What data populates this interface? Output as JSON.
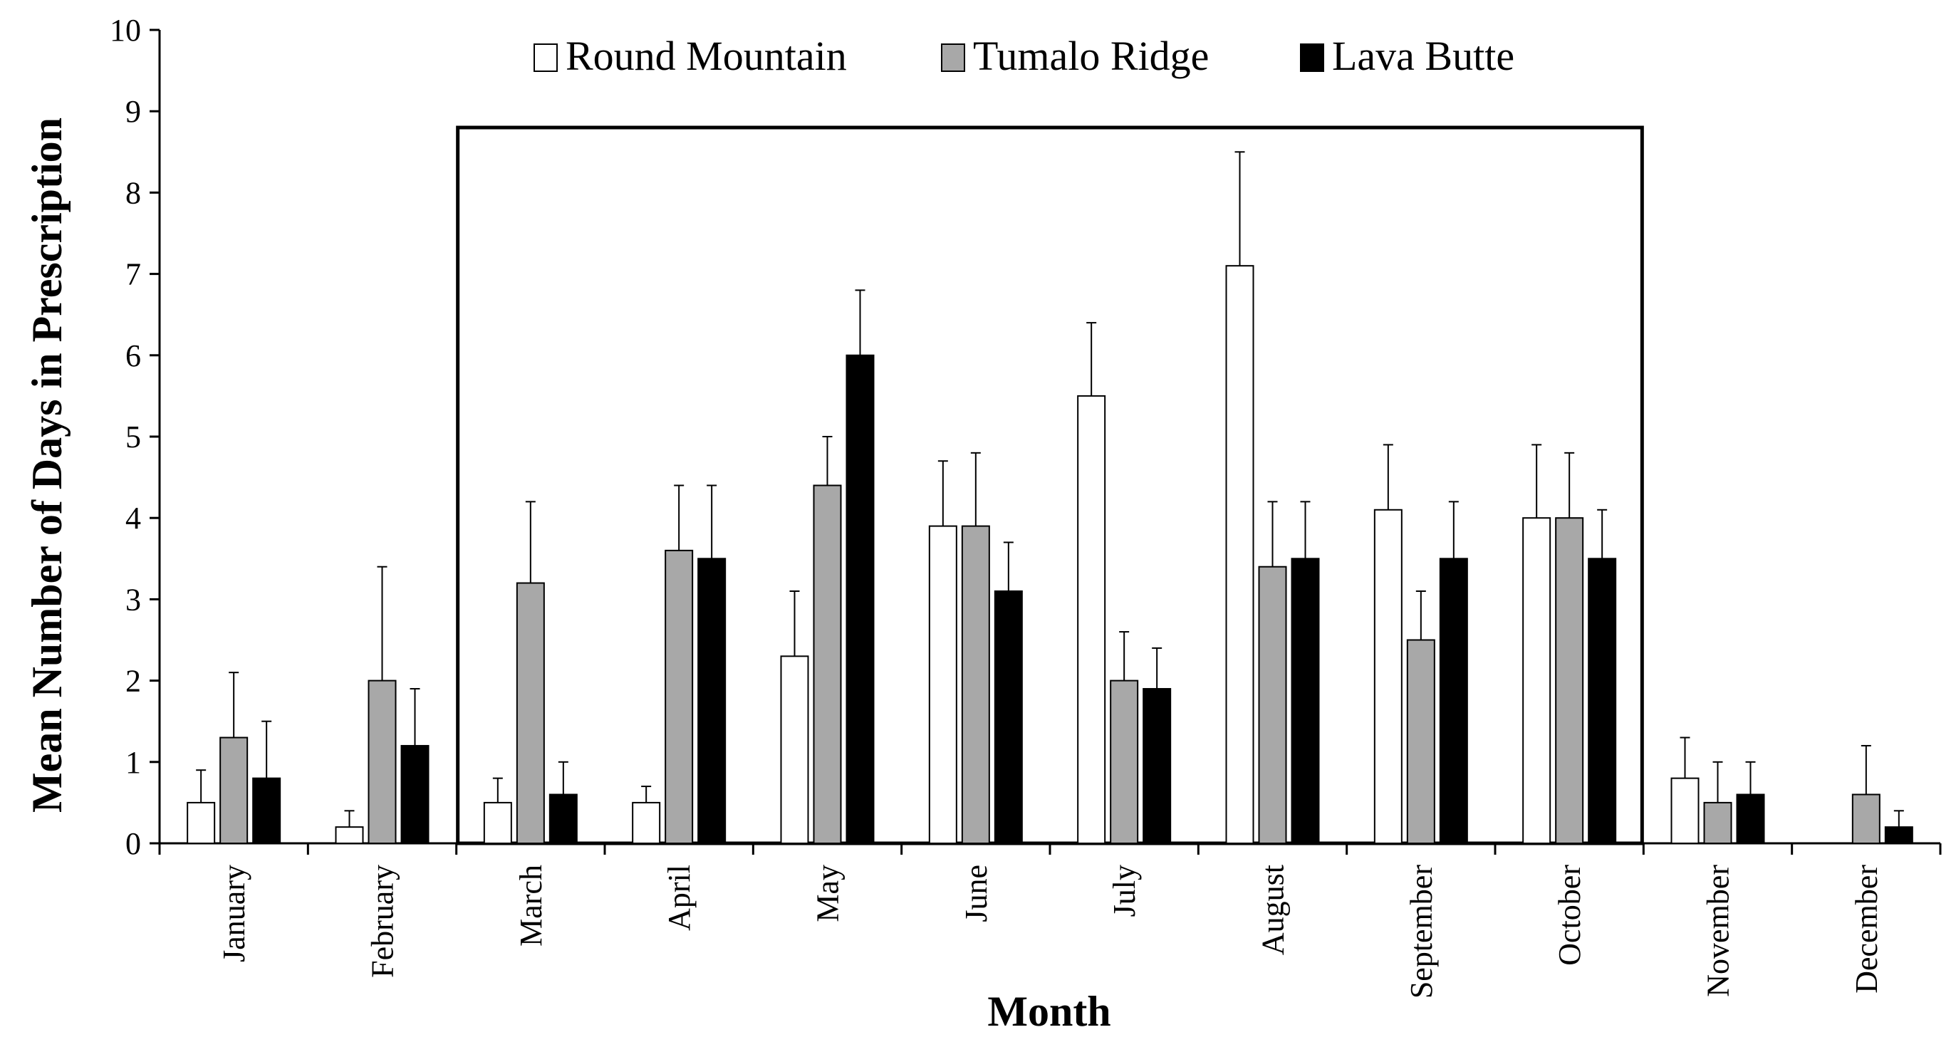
{
  "chart_data": {
    "type": "bar",
    "title": "",
    "xlabel": "Month",
    "ylabel": "Mean Number of Days in Prescription",
    "ylim": [
      0,
      10
    ],
    "yticks": [
      "0",
      "1",
      "2",
      "3",
      "4",
      "5",
      "6",
      "7",
      "8",
      "9",
      "10"
    ],
    "categories": [
      "January",
      "February",
      "March",
      "April",
      "May",
      "June",
      "July",
      "August",
      "September",
      "October",
      "November",
      "December"
    ],
    "series": [
      {
        "name": "Round Mountain",
        "color": "#ffffff",
        "values": [
          0.5,
          0.2,
          0.5,
          0.5,
          2.3,
          3.9,
          5.5,
          7.1,
          4.1,
          4.0,
          0.8,
          0.0
        ],
        "errors": [
          0.4,
          0.2,
          0.3,
          0.2,
          0.8,
          0.8,
          0.9,
          1.4,
          0.8,
          0.9,
          0.5,
          0.0
        ]
      },
      {
        "name": "Tumalo Ridge",
        "color": "#a8a8a8",
        "values": [
          1.3,
          2.0,
          3.2,
          3.6,
          4.4,
          3.9,
          2.0,
          3.4,
          2.5,
          4.0,
          0.5,
          0.6
        ],
        "errors": [
          0.8,
          1.4,
          1.0,
          0.8,
          0.6,
          0.9,
          0.6,
          0.8,
          0.6,
          0.8,
          0.5,
          0.6
        ]
      },
      {
        "name": "Lava Butte",
        "color": "#000000",
        "values": [
          0.8,
          1.2,
          0.6,
          3.5,
          6.0,
          3.1,
          1.9,
          3.5,
          3.5,
          3.5,
          0.6,
          0.2
        ],
        "errors": [
          0.7,
          0.7,
          0.4,
          0.9,
          0.8,
          0.6,
          0.5,
          0.7,
          0.7,
          0.6,
          0.4,
          0.2
        ]
      }
    ],
    "legend_position": "top-center",
    "highlight_range": [
      "March",
      "October"
    ],
    "highlight_ymax": 8.8,
    "grid": false
  }
}
